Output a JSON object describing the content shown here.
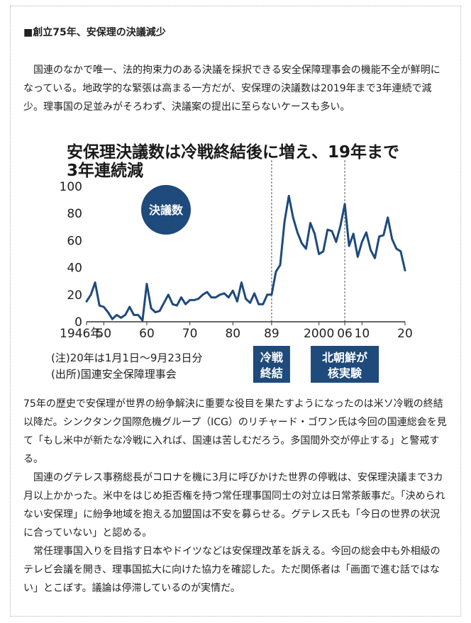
{
  "article": {
    "heading": "■創立75年、安保理の決議減少",
    "paragraph_1": "国連のなかで唯一、法的拘束力のある決議を採択できる安全保障理事会の機能不全が鮮明になっている。地政学的な緊張は高まる一方だが、安保理の決議数は2019年まで3年連続で減少。理事国の足並みがそろわず、決議案の提出に至らないケースも多い。",
    "paragraph_2": "75年の歴史で安保理が世界の紛争解決に重要な役目を果たすようになったのは米ソ冷戦の終結以降だ。シンクタンク国際危機グループ（ICG）のリチャード・ゴワン氏は今回の国連総会を見て「もし米中が新たな冷戦に入れば、国連は苦しむだろう。多国間外交が停止する」と警戒する。",
    "paragraph_3": "国連のグテレス事務総長がコロナを機に3月に呼びかけた世界の停戦は、安保理決議まで3カ月以上かかった。米中をはじめ拒否権を持つ常任理事国同士の対立は日常茶飯事だ。「決められない安保理」に紛争地域を抱える加盟国は不安を募らせる。グテレス氏も「今日の世界の状況に合っていない」と認める。",
    "paragraph_4": "常任理事国入りを目指す日本やドイツなどは安保理改革を訴える。今回の総会中も外相級のテレビ会議を開き、理事国拡大に向けた協力を確認した。ただ関係者は「画面で進む話ではない」とこぼす。議論は停滞しているのが実情だ。"
  },
  "chart_data": {
    "type": "line",
    "title_line1": "安保理決議数は冷戦終結後に増え、19年まで",
    "title_line2": "3年連続減",
    "series_badge": "決議数",
    "ylim": [
      0,
      100
    ],
    "y_ticks": [
      "0",
      "20",
      "40",
      "60",
      "80",
      "100"
    ],
    "x_tick_labels": [
      {
        "year": 1946,
        "label": "1946年"
      },
      {
        "year": 1950,
        "label": "50"
      },
      {
        "year": 1960,
        "label": "60"
      },
      {
        "year": 1970,
        "label": "70"
      },
      {
        "year": 1980,
        "label": "80"
      },
      {
        "year": 1989,
        "label": "89"
      },
      {
        "year": 2000,
        "label": "2000"
      },
      {
        "year": 2006,
        "label": "06"
      },
      {
        "year": 2010,
        "label": "10"
      },
      {
        "year": 2020,
        "label": "20"
      }
    ],
    "xlim": [
      1946,
      2020
    ],
    "x": [
      1946,
      1947,
      1948,
      1949,
      1950,
      1951,
      1952,
      1953,
      1954,
      1955,
      1956,
      1957,
      1958,
      1959,
      1960,
      1961,
      1962,
      1963,
      1964,
      1965,
      1966,
      1967,
      1968,
      1969,
      1970,
      1971,
      1972,
      1973,
      1974,
      1975,
      1976,
      1977,
      1978,
      1979,
      1980,
      1981,
      1982,
      1983,
      1984,
      1985,
      1986,
      1987,
      1988,
      1989,
      1990,
      1991,
      1992,
      1993,
      1994,
      1995,
      1996,
      1997,
      1998,
      1999,
      2000,
      2001,
      2002,
      2003,
      2004,
      2005,
      2006,
      2007,
      2008,
      2009,
      2010,
      2011,
      2012,
      2013,
      2014,
      2015,
      2016,
      2017,
      2018,
      2019,
      2020
    ],
    "values": [
      15,
      20,
      29,
      12,
      11,
      7,
      2,
      5,
      3,
      5,
      11,
      5,
      5,
      1,
      28,
      10,
      7,
      8,
      14,
      20,
      13,
      12,
      18,
      13,
      16,
      16,
      17,
      20,
      22,
      18,
      18,
      20,
      21,
      18,
      23,
      15,
      29,
      17,
      14,
      21,
      13,
      13,
      20,
      20,
      37,
      42,
      74,
      93,
      77,
      66,
      58,
      54,
      73,
      65,
      50,
      52,
      68,
      67,
      59,
      71,
      87,
      56,
      65,
      48,
      59,
      66,
      53,
      47,
      63,
      64,
      77,
      61,
      54,
      52,
      38
    ],
    "events": [
      {
        "year": 1989,
        "label_line1": "冷戦",
        "label_line2": "終結"
      },
      {
        "year": 2006,
        "label_line1": "北朝鮮が",
        "label_line2": "核実験"
      }
    ],
    "note_1": "(注)20年は1月1日〜9月23日分",
    "note_2": "(出所)国連安全保障理事会",
    "colors": {
      "line": "#1e4a7c",
      "badge": "#1e4a7c",
      "event_box": "#1e4a7c"
    }
  }
}
